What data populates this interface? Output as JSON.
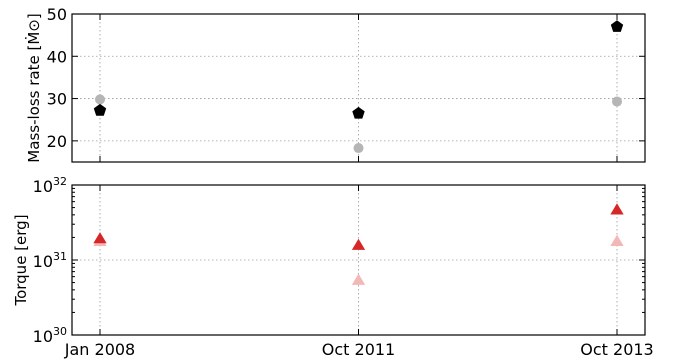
{
  "chart_data": [
    {
      "type": "scatter",
      "ylabel": "Mass-loss rate [Ṁ⊙]",
      "ylim": [
        15,
        50
      ],
      "yticks": [
        20,
        30,
        40,
        50
      ],
      "categories": [
        "Jan 2008",
        "Oct 2011",
        "Oct 2013"
      ],
      "grid": true,
      "series": [
        {
          "values": [
            27.2,
            26.5,
            47.0
          ],
          "marker": "pentagon",
          "color": "#000000"
        },
        {
          "values": [
            29.8,
            18.3,
            29.3
          ],
          "marker": "circle",
          "color": "#b5b5b5"
        }
      ]
    },
    {
      "type": "scatter",
      "ylabel": "Torque [erg]",
      "yscale": "log",
      "ylim": [
        1e+30,
        1e+32
      ],
      "ytick_labels": [
        {
          "base": "10",
          "exp": "30"
        },
        {
          "base": "10",
          "exp": "31"
        },
        {
          "base": "10",
          "exp": "32"
        }
      ],
      "categories": [
        "Jan 2008",
        "Oct 2011",
        "Oct 2013"
      ],
      "grid": true,
      "series": [
        {
          "values": [
            1.9e+31,
            1.55e+31,
            4.6e+31
          ],
          "marker": "triangle",
          "color": "#d62728"
        },
        {
          "values": [
            1.75e+31,
            5.3e+30,
            1.75e+31
          ],
          "marker": "triangle",
          "color": "#f2b8b8"
        }
      ]
    }
  ]
}
